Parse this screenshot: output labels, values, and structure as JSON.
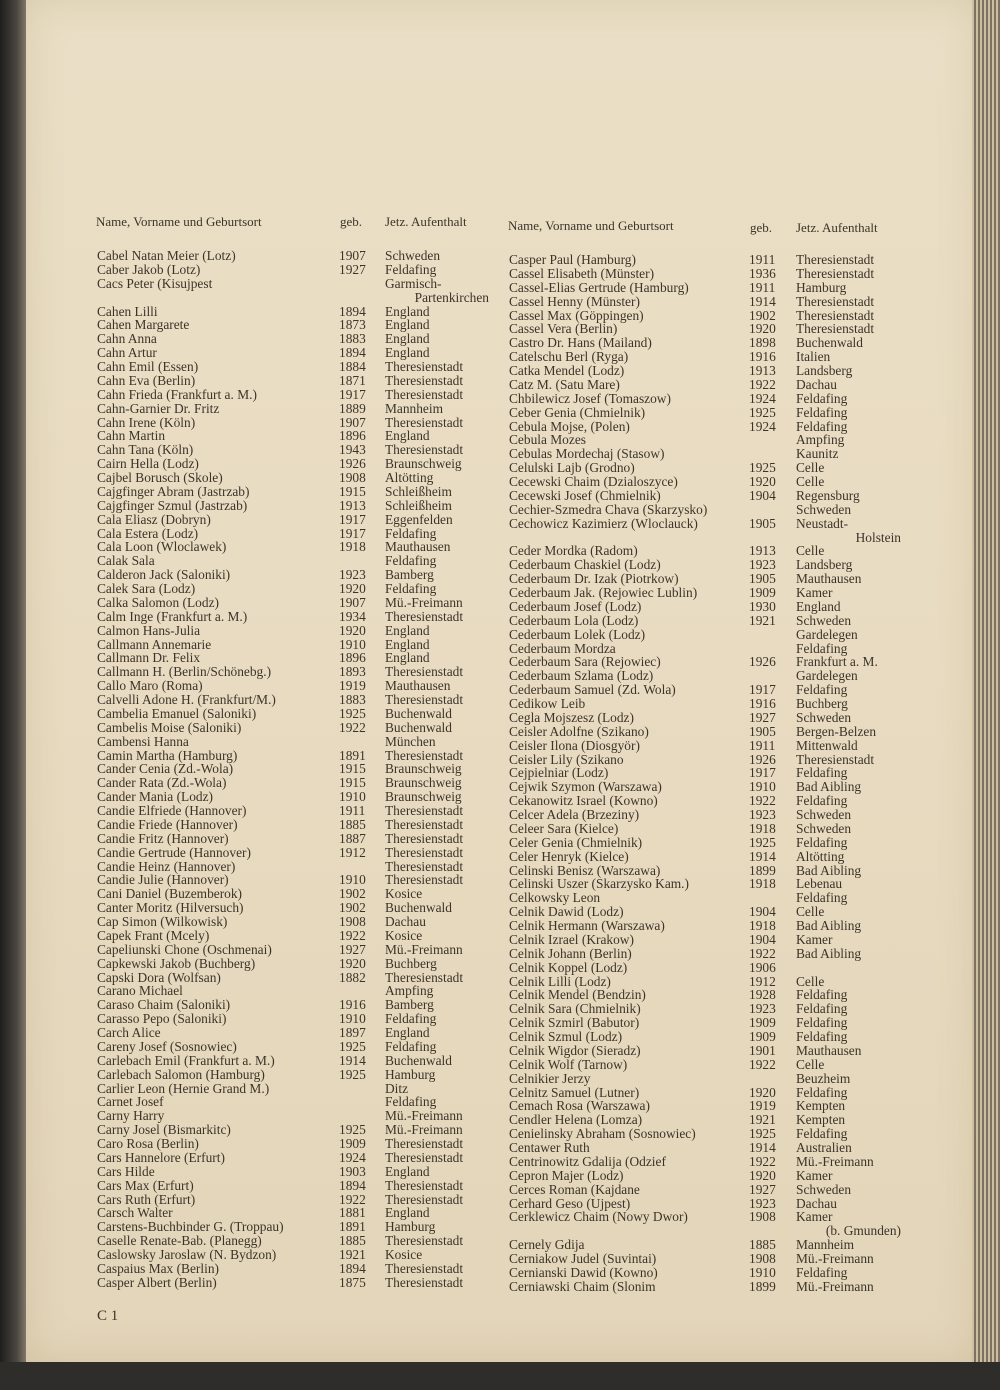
{
  "headers": {
    "name": "Name, Vorname und Geburtsort",
    "born": "geb.",
    "residence": "Jetz. Aufenthalt"
  },
  "left": [
    [
      "Cabel Natan Meier (Lotz)",
      "1907",
      "Schweden"
    ],
    [
      "Caber Jakob (Lotz)",
      "1927",
      "Feldafing"
    ],
    [
      "Cacs Peter (Kisujpest",
      "",
      "Garmisch-",
      "Partenkirchen"
    ],
    [
      "Cahen Lilli",
      "1894",
      "England"
    ],
    [
      "Cahen Margarete",
      "1873",
      "England"
    ],
    [
      "Cahn Anna",
      "1883",
      "England"
    ],
    [
      "Cahn Artur",
      "1894",
      "England"
    ],
    [
      "Cahn Emil (Essen)",
      "1884",
      "Theresienstadt"
    ],
    [
      "Cahn Eva (Berlin)",
      "1871",
      "Theresienstadt"
    ],
    [
      "Cahn Frieda (Frankfurt a. M.)",
      "1917",
      "Theresienstadt"
    ],
    [
      "Cahn-Garnier Dr. Fritz",
      "1889",
      "Mannheim"
    ],
    [
      "Cahn Irene (Köln)",
      "1907",
      "Theresienstadt"
    ],
    [
      "Cahn Martin",
      "1896",
      "England"
    ],
    [
      "Cahn Tana (Köln)",
      "1943",
      "Theresienstadt"
    ],
    [
      "Cairn Hella (Lodz)",
      "1926",
      "Braunschweig"
    ],
    [
      "Cajbel Borusch (Skole)",
      "1908",
      "Altötting"
    ],
    [
      "Cajgfinger Abram (Jastrzab)",
      "1915",
      "Schleißheim"
    ],
    [
      "Cajgfinger Szmul (Jastrzab)",
      "1913",
      "Schleißheim"
    ],
    [
      "Cala Eliasz (Dobryn)",
      "1917",
      "Eggenfelden"
    ],
    [
      "Cala Estera (Lodz)",
      "1917",
      "Feldafing"
    ],
    [
      "Cala Loon (Wloclawek)",
      "1918",
      "Mauthausen"
    ],
    [
      "Calak Sala",
      "",
      "Feldafing"
    ],
    [
      "Calderon Jack (Saloniki)",
      "1923",
      "Bamberg"
    ],
    [
      "Calek Sara (Lodz)",
      "1920",
      "Feldafing"
    ],
    [
      "Calka Salomon (Lodz)",
      "1907",
      "Mü.-Freimann"
    ],
    [
      "Calm Inge (Frankfurt a. M.)",
      "1934",
      "Theresienstadt"
    ],
    [
      "Calmon Hans-Julia",
      "1920",
      "England"
    ],
    [
      "Callmann Annemarie",
      "1910",
      "England"
    ],
    [
      "Callmann Dr. Felix",
      "1896",
      "England"
    ],
    [
      "Callmann H. (Berlin/Schönebg.)",
      "1893",
      "Theresienstadt"
    ],
    [
      "Callo Maro (Roma)",
      "1919",
      "Mauthausen"
    ],
    [
      "Calvelli Adone H. (Frankfurt/M.)",
      "1883",
      "Theresienstadt"
    ],
    [
      "Cambelia Emanuel (Saloniki)",
      "1925",
      "Buchenwald"
    ],
    [
      "Cambelis Moise (Saloniki)",
      "1922",
      "Buchenwald"
    ],
    [
      "Cambensi Hanna",
      "",
      "München"
    ],
    [
      "Camin Martha (Hamburg)",
      "1891",
      "Theresienstadt"
    ],
    [
      "Cander Cenia (Zd.-Wola)",
      "1915",
      "Braunschweig"
    ],
    [
      "Cander Rata (Zd.-Wola)",
      "1915",
      "Braunschweig"
    ],
    [
      "Cander Mania (Lodz)",
      "1910",
      "Braunschweig"
    ],
    [
      "Candie Elfriede (Hannover)",
      "1911",
      "Theresienstadt"
    ],
    [
      "Candie Friede (Hannover)",
      "1885",
      "Theresienstadt"
    ],
    [
      "Candie Fritz (Hannover)",
      "1887",
      "Theresienstadt"
    ],
    [
      "Candie Gertrude (Hannover)",
      "1912",
      "Theresienstadt"
    ],
    [
      "Candie Heinz (Hannover)",
      "",
      "Theresienstadt"
    ],
    [
      "Candie Julie (Hannover)",
      "1910",
      "Theresienstadt"
    ],
    [
      "Cani Daniel (Buzemberok)",
      "1902",
      "Kosice"
    ],
    [
      "Canter Moritz (Hilversuch)",
      "1902",
      "Buchenwald"
    ],
    [
      "Cap Simon (Wilkowisk)",
      "1908",
      "Dachau"
    ],
    [
      "Capek Frant (Mcely)",
      "1922",
      "Kosice"
    ],
    [
      "Capeliunski Chone (Oschmenai)",
      "1927",
      "Mü.-Freimann"
    ],
    [
      "Capkewski Jakob (Buchberg)",
      "1920",
      "Buchberg"
    ],
    [
      "Capski Dora (Wolfsan)",
      "1882",
      "Theresienstadt"
    ],
    [
      "Carano Michael",
      "",
      "Ampfing"
    ],
    [
      "Caraso Chaim (Saloniki)",
      "1916",
      "Bamberg"
    ],
    [
      "Carasso Pepo (Saloniki)",
      "1910",
      "Feldafing"
    ],
    [
      "Carch Alice",
      "1897",
      "England"
    ],
    [
      "Careny Josef (Sosnowiec)",
      "1925",
      "Feldafing"
    ],
    [
      "Carlebach Emil (Frankfurt a. M.)",
      "1914",
      "Buchenwald"
    ],
    [
      "Carlebach Salomon (Hamburg)",
      "1925",
      "Hamburg"
    ],
    [
      "Carlier Leon (Hernie Grand M.)",
      "",
      "Ditz"
    ],
    [
      "Carnet Josef",
      "",
      "Feldafing"
    ],
    [
      "Carny Harry",
      "",
      "Mü.-Freimann"
    ],
    [
      "Carny Josel (Bismarkitc)",
      "1925",
      "Mü.-Freimann"
    ],
    [
      "Caro Rosa (Berlin)",
      "1909",
      "Theresienstadt"
    ],
    [
      "Cars Hannelore (Erfurt)",
      "1924",
      "Theresienstadt"
    ],
    [
      "Cars Hilde",
      "1903",
      "England"
    ],
    [
      "Cars Max (Erfurt)",
      "1894",
      "Theresienstadt"
    ],
    [
      "Cars Ruth (Erfurt)",
      "1922",
      "Theresienstadt"
    ],
    [
      "Carsch Walter",
      "1881",
      "England"
    ],
    [
      "Carstens-Buchbinder G. (Troppau)",
      "1891",
      "Hamburg"
    ],
    [
      "Caselle Renate-Bab. (Planegg)",
      "1885",
      "Theresienstadt"
    ],
    [
      "Caslowsky Jaroslaw (N. Bydzon)",
      "1921",
      "Kosice"
    ],
    [
      "Caspaius Max (Berlin)",
      "1894",
      "Theresienstadt"
    ],
    [
      "Casper Albert (Berlin)",
      "1875",
      "Theresienstadt"
    ]
  ],
  "right": [
    [
      "Casper Paul (Hamburg)",
      "1911",
      "Theresienstadt"
    ],
    [
      "Cassel Elisabeth (Münster)",
      "1936",
      "Theresienstadt"
    ],
    [
      "Cassel-Elias Gertrude (Hamburg)",
      "1911",
      "Hamburg"
    ],
    [
      "Cassel Henny (Münster)",
      "1914",
      "Theresienstadt"
    ],
    [
      "Cassel Max (Göppingen)",
      "1902",
      "Theresienstadt"
    ],
    [
      "Cassel Vera (Berlin)",
      "1920",
      "Theresienstadt"
    ],
    [
      "Castro Dr. Hans (Mailand)",
      "1898",
      "Buchenwald"
    ],
    [
      "Catelschu Berl (Ryga)",
      "1916",
      "Italien"
    ],
    [
      "Catka Mendel (Lodz)",
      "1913",
      "Landsberg"
    ],
    [
      "Catz M. (Satu Mare)",
      "1922",
      "Dachau"
    ],
    [
      "Chbilewicz Josef (Tomaszow)",
      "1924",
      "Feldafing"
    ],
    [
      "Ceber Genia (Chmielnik)",
      "1925",
      "Feldafing"
    ],
    [
      "Cebula Mojse, (Polen)",
      "1924",
      "Feldafing"
    ],
    [
      "Cebula Mozes",
      "",
      "Ampfing"
    ],
    [
      "Cebulas Mordechaj (Stasow)",
      "",
      "Kaunitz"
    ],
    [
      "Celulski Lajb (Grodno)",
      "1925",
      "Celle"
    ],
    [
      "Cecewski Chaim (Dzialoszyce)",
      "1920",
      "Celle"
    ],
    [
      "Cecewski Josef (Chmielnik)",
      "1904",
      "Regensburg"
    ],
    [
      "Cechier-Szmedra Chava (Skarzysko)",
      "",
      "Schweden"
    ],
    [
      "Cechowicz Kazimierz (Wloclauck)",
      "1905",
      "Neustadt-",
      "Holstein"
    ],
    [
      "Ceder Mordka (Radom)",
      "1913",
      "Celle"
    ],
    [
      "Cederbaum Chaskiel (Lodz)",
      "1923",
      "Landsberg"
    ],
    [
      "Cederbaum Dr. Izak (Piotrkow)",
      "1905",
      "Mauthausen"
    ],
    [
      "Cederbaum Jak. (Rejowiec Lublin)",
      "1909",
      "Kamer"
    ],
    [
      "Cederbaum Josef (Lodz)",
      "1930",
      "England"
    ],
    [
      "Cederbaum Lola (Lodz)",
      "1921",
      "Schweden"
    ],
    [
      "Cederbaum Lolek (Lodz)",
      "",
      "Gardelegen"
    ],
    [
      "Cederbaum Mordza",
      "",
      "Feldafing"
    ],
    [
      "Cederbaum Sara (Rejowiec)",
      "1926",
      "Frankfurt a. M."
    ],
    [
      "Cederbaum Szlama (Lodz)",
      "",
      "Gardelegen"
    ],
    [
      "Cederbaum Samuel (Zd. Wola)",
      "1917",
      "Feldafing"
    ],
    [
      "Cedikow Leib",
      "1916",
      "Buchberg"
    ],
    [
      "Cegla Mojszesz (Lodz)",
      "1927",
      "Schweden"
    ],
    [
      "Ceisler Adolfne (Szikano)",
      "1905",
      "Bergen-Belzen"
    ],
    [
      "Ceisler Ilona (Diosgyör)",
      "1911",
      "Mittenwald"
    ],
    [
      "Ceisler Lily (Szikano",
      "1926",
      "Theresienstadt"
    ],
    [
      "Cejpielniar (Lodz)",
      "1917",
      "Feldafing"
    ],
    [
      "Cejwik Szymon (Warszawa)",
      "1910",
      "Bad Aibling"
    ],
    [
      "Cekanowitz Israel (Kowno)",
      "1922",
      "Feldafing"
    ],
    [
      "Celcer Adela (Brzeziny)",
      "1923",
      "Schweden"
    ],
    [
      "Celeer Sara (Kielce)",
      "1918",
      "Schweden"
    ],
    [
      "Celer Genia (Chmielnik)",
      "1925",
      "Feldafing"
    ],
    [
      "Celer Henryk (Kielce)",
      "1914",
      "Altötting"
    ],
    [
      "Celinski Benisz (Warszawa)",
      "1899",
      "Bad Aibling"
    ],
    [
      "Celinski Uszer (Skarzysko Kam.)",
      "1918",
      "Lebenau"
    ],
    [
      "Celkowsky Leon",
      "",
      "Feldafing"
    ],
    [
      "Celnik Dawid (Lodz)",
      "1904",
      "Celle"
    ],
    [
      "Celnik Hermann (Warszawa)",
      "1918",
      "Bad Aibling"
    ],
    [
      "Celnik Izrael (Krakow)",
      "1904",
      "Kamer"
    ],
    [
      "Celnik Johann (Berlin)",
      "1922",
      "Bad Aibling"
    ],
    [
      "Celnik Koppel (Lodz)",
      "1906",
      ""
    ],
    [
      "Celnik Lilli (Lodz)",
      "1912",
      "Celle"
    ],
    [
      "Celnik Mendel (Bendzin)",
      "1928",
      "Feldafing"
    ],
    [
      "Celnik Sara (Chmielnik)",
      "1923",
      "Feldafing"
    ],
    [
      "Celnik Szmirl (Babutor)",
      "1909",
      "Feldafing"
    ],
    [
      "Celnik Szmul (Lodz)",
      "1909",
      "Feldafing"
    ],
    [
      "Celnik Wigdor (Sieradz)",
      "1901",
      "Mauthausen"
    ],
    [
      "Celnik Wolf (Tarnow)",
      "1922",
      "Celle"
    ],
    [
      "Celnikier Jerzy",
      "",
      "Beuzheim"
    ],
    [
      "Celnitz Samuel (Lutner)",
      "1920",
      "Feldafing"
    ],
    [
      "Cemach Rosa (Warszawa)",
      "1919",
      "Kempten"
    ],
    [
      "Cendler Helena (Lomza)",
      "1921",
      "Kempten"
    ],
    [
      "Cenielinsky Abraham (Sosnowiec)",
      "1925",
      "Feldafing"
    ],
    [
      "Centawer Ruth",
      "1914",
      "Australien"
    ],
    [
      "Centrinowitz Gdalija (Odzief",
      "1922",
      "Mü.-Freimann"
    ],
    [
      "Cepron Majer (Lodz)",
      "1920",
      "Kamer"
    ],
    [
      "Cerces Roman (Kajdane",
      "1927",
      "Schweden"
    ],
    [
      "Cerhard Geso (Ujpest)",
      "1923",
      "Dachau"
    ],
    [
      "Cerklewicz Chaim (Nowy Dwor)",
      "1908",
      "Kamer",
      "(b. Gmunden)"
    ],
    [
      "Cernely Gdija",
      "1885",
      "Mannheim"
    ],
    [
      "Cerniakow Judel (Suvintai)",
      "1908",
      "Mü.-Freimann"
    ],
    [
      "Cernianski Dawid (Kowno)",
      "1910",
      "Feldafing"
    ],
    [
      "Cerniawski Chaim (Slonim",
      "1899",
      "Mü.-Freimann"
    ]
  ],
  "footer": {
    "page_mark": "C 1"
  }
}
